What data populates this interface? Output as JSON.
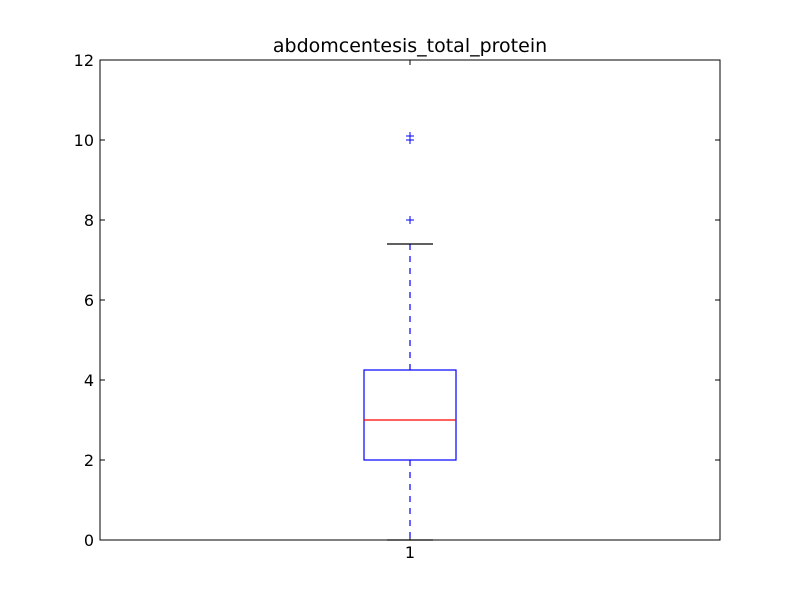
{
  "chart_data": {
    "type": "box",
    "title": "abdomcentesis_total_protein",
    "xlabel": "",
    "ylabel": "",
    "categories": [
      "1"
    ],
    "ylim": [
      0,
      12
    ],
    "yticks": [
      "0",
      "2",
      "4",
      "6",
      "8",
      "10",
      "12"
    ],
    "boxes": [
      {
        "category": "1",
        "whisker_low": 0.0,
        "q1": 2.0,
        "median": 3.0,
        "q3": 4.25,
        "whisker_high": 7.4,
        "outliers": [
          8.0,
          10.0,
          10.1
        ]
      }
    ],
    "grid": false,
    "colors": {
      "box": "#0000ff",
      "median": "#ff0000",
      "whisker": "#0000ff",
      "cap": "#000000",
      "outlier": "#0000ff",
      "axes": "#000000"
    }
  }
}
